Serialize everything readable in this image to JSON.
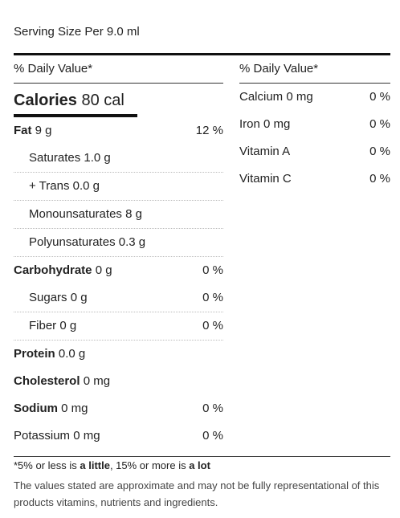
{
  "serving": "Serving Size Per 9.0 ml",
  "daily_value_header": "% Daily Value*",
  "calories": {
    "label": "Calories",
    "value": "80 cal"
  },
  "left_rows": [
    {
      "label": "Fat",
      "amount": "9 g",
      "pct": "12 %",
      "bold": true,
      "indent": false
    },
    {
      "label": "Saturates",
      "amount": "1.0 g",
      "pct": "",
      "bold": false,
      "indent": true
    },
    {
      "label": "+ Trans",
      "amount": "0.0 g",
      "pct": "",
      "bold": false,
      "indent": true
    },
    {
      "label": "Monounsaturates",
      "amount": "8 g",
      "pct": "",
      "bold": false,
      "indent": true
    },
    {
      "label": "Polyunsaturates",
      "amount": "0.3 g",
      "pct": "",
      "bold": false,
      "indent": true
    },
    {
      "label": "Carbohydrate",
      "amount": "0 g",
      "pct": "0 %",
      "bold": true,
      "indent": false
    },
    {
      "label": "Sugars",
      "amount": "0 g",
      "pct": "0 %",
      "bold": false,
      "indent": true
    },
    {
      "label": "Fiber",
      "amount": "0 g",
      "pct": "0 %",
      "bold": false,
      "indent": true
    },
    {
      "label": "Protein",
      "amount": "0.0 g",
      "pct": "",
      "bold": true,
      "indent": false
    },
    {
      "label": "Cholesterol",
      "amount": "0 mg",
      "pct": "",
      "bold": true,
      "indent": false
    },
    {
      "label": "Sodium",
      "amount": "0 mg",
      "pct": "0 %",
      "bold": true,
      "indent": false
    },
    {
      "label": "Potassium",
      "amount": "0 mg",
      "pct": "0 %",
      "bold": false,
      "indent": false
    }
  ],
  "right_rows": [
    {
      "label": "Calcium",
      "amount": "0 mg",
      "pct": "0 %"
    },
    {
      "label": "Iron",
      "amount": "0 mg",
      "pct": "0 %"
    },
    {
      "label": "Vitamin A",
      "amount": "",
      "pct": "0 %"
    },
    {
      "label": "Vitamin C",
      "amount": "",
      "pct": "0 %"
    }
  ],
  "footnote": {
    "prefix": "*5% or less is ",
    "little": "a little",
    "middle": ", 15% or more is ",
    "lot": "a lot"
  },
  "disclaimer": "The values stated are approximate and may not be fully representational of this products vitamins, nutrients and ingredients."
}
